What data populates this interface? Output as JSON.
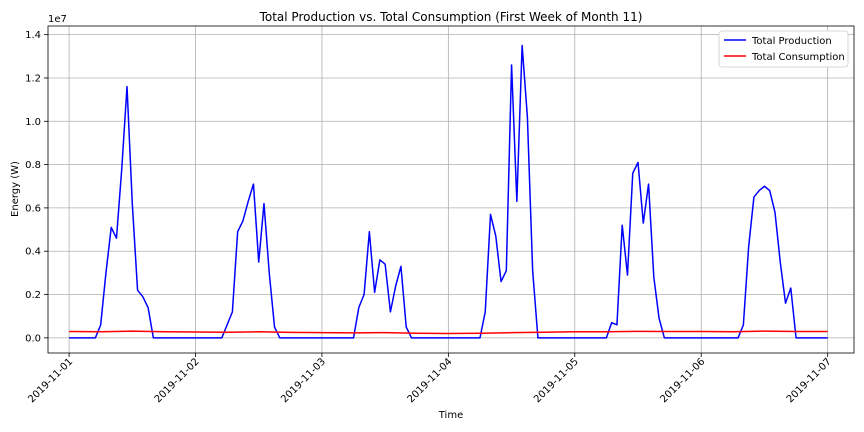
{
  "chart_data": {
    "type": "line",
    "title": "Total Production vs. Total Consumption (First Week of Month 11)",
    "xlabel": "Time",
    "ylabel": "Energy (W)",
    "y_scale_label": "1e7",
    "x_range": [
      "2019-11-00 20:00",
      "2019-11-07 05:00"
    ],
    "ylim": [
      -700000,
      14400000
    ],
    "x_ticks": [
      "2019-11-01",
      "2019-11-02",
      "2019-11-03",
      "2019-11-04",
      "2019-11-05",
      "2019-11-06",
      "2019-11-07"
    ],
    "y_ticks": [
      {
        "value": 0,
        "label": "0.0"
      },
      {
        "value": 2000000,
        "label": "0.2"
      },
      {
        "value": 4000000,
        "label": "0.4"
      },
      {
        "value": 6000000,
        "label": "0.6"
      },
      {
        "value": 8000000,
        "label": "0.8"
      },
      {
        "value": 10000000,
        "label": "1.0"
      },
      {
        "value": 12000000,
        "label": "1.2"
      },
      {
        "value": 14000000,
        "label": "1.4"
      }
    ],
    "grid": true,
    "legend_position": "top-right",
    "series": [
      {
        "name": "Total Production",
        "color": "#0000ff",
        "points": [
          [
            "2019-11-01 00:00",
            0
          ],
          [
            "2019-11-01 05:00",
            0
          ],
          [
            "2019-11-01 06:00",
            600000
          ],
          [
            "2019-11-01 07:00",
            3000000
          ],
          [
            "2019-11-01 08:00",
            5100000
          ],
          [
            "2019-11-01 09:00",
            4600000
          ],
          [
            "2019-11-01 10:00",
            7800000
          ],
          [
            "2019-11-01 11:00",
            11600000
          ],
          [
            "2019-11-01 12:00",
            6200000
          ],
          [
            "2019-11-01 13:00",
            2200000
          ],
          [
            "2019-11-01 14:00",
            1900000
          ],
          [
            "2019-11-01 15:00",
            1400000
          ],
          [
            "2019-11-01 16:00",
            0
          ],
          [
            "2019-11-02 05:00",
            0
          ],
          [
            "2019-11-02 07:00",
            1200000
          ],
          [
            "2019-11-02 08:00",
            4900000
          ],
          [
            "2019-11-02 09:00",
            5400000
          ],
          [
            "2019-11-02 10:00",
            6300000
          ],
          [
            "2019-11-02 11:00",
            7100000
          ],
          [
            "2019-11-02 12:00",
            3500000
          ],
          [
            "2019-11-02 13:00",
            6200000
          ],
          [
            "2019-11-02 14:00",
            3000000
          ],
          [
            "2019-11-02 15:00",
            500000
          ],
          [
            "2019-11-02 16:00",
            0
          ],
          [
            "2019-11-03 05:00",
            0
          ],
          [
            "2019-11-03 06:00",
            0
          ],
          [
            "2019-11-03 07:00",
            1400000
          ],
          [
            "2019-11-03 08:00",
            2000000
          ],
          [
            "2019-11-03 09:00",
            4900000
          ],
          [
            "2019-11-03 10:00",
            2100000
          ],
          [
            "2019-11-03 11:00",
            3600000
          ],
          [
            "2019-11-03 12:00",
            3400000
          ],
          [
            "2019-11-03 13:00",
            1200000
          ],
          [
            "2019-11-03 14:00",
            2400000
          ],
          [
            "2019-11-03 15:00",
            3300000
          ],
          [
            "2019-11-03 16:00",
            500000
          ],
          [
            "2019-11-03 17:00",
            0
          ],
          [
            "2019-11-04 06:00",
            0
          ],
          [
            "2019-11-04 07:00",
            1200000
          ],
          [
            "2019-11-04 08:00",
            5700000
          ],
          [
            "2019-11-04 09:00",
            4700000
          ],
          [
            "2019-11-04 10:00",
            2600000
          ],
          [
            "2019-11-04 11:00",
            3100000
          ],
          [
            "2019-11-04 12:00",
            12600000
          ],
          [
            "2019-11-04 13:00",
            6300000
          ],
          [
            "2019-11-04 14:00",
            13500000
          ],
          [
            "2019-11-04 15:00",
            10200000
          ],
          [
            "2019-11-04 16:00",
            3100000
          ],
          [
            "2019-11-04 17:00",
            0
          ],
          [
            "2019-11-05 06:00",
            0
          ],
          [
            "2019-11-05 07:00",
            700000
          ],
          [
            "2019-11-05 08:00",
            600000
          ],
          [
            "2019-11-05 09:00",
            5200000
          ],
          [
            "2019-11-05 10:00",
            2900000
          ],
          [
            "2019-11-05 11:00",
            7600000
          ],
          [
            "2019-11-05 12:00",
            8100000
          ],
          [
            "2019-11-05 13:00",
            5300000
          ],
          [
            "2019-11-05 14:00",
            7100000
          ],
          [
            "2019-11-05 15:00",
            2800000
          ],
          [
            "2019-11-05 16:00",
            900000
          ],
          [
            "2019-11-05 17:00",
            0
          ],
          [
            "2019-11-06 07:00",
            0
          ],
          [
            "2019-11-06 08:00",
            600000
          ],
          [
            "2019-11-06 09:00",
            4200000
          ],
          [
            "2019-11-06 10:00",
            6500000
          ],
          [
            "2019-11-06 11:00",
            6800000
          ],
          [
            "2019-11-06 12:00",
            7000000
          ],
          [
            "2019-11-06 13:00",
            6800000
          ],
          [
            "2019-11-06 14:00",
            5800000
          ],
          [
            "2019-11-06 15:00",
            3500000
          ],
          [
            "2019-11-06 16:00",
            1600000
          ],
          [
            "2019-11-06 17:00",
            2300000
          ],
          [
            "2019-11-06 18:00",
            0
          ],
          [
            "2019-11-07 00:00",
            0
          ]
        ]
      },
      {
        "name": "Total Consumption",
        "color": "#ff0000",
        "points": [
          [
            "2019-11-01 00:00",
            290000
          ],
          [
            "2019-11-01 06:00",
            280000
          ],
          [
            "2019-11-01 12:00",
            310000
          ],
          [
            "2019-11-01 18:00",
            280000
          ],
          [
            "2019-11-02 00:00",
            270000
          ],
          [
            "2019-11-02 06:00",
            260000
          ],
          [
            "2019-11-02 12:00",
            280000
          ],
          [
            "2019-11-02 18:00",
            250000
          ],
          [
            "2019-11-03 00:00",
            240000
          ],
          [
            "2019-11-03 06:00",
            230000
          ],
          [
            "2019-11-03 12:00",
            240000
          ],
          [
            "2019-11-03 18:00",
            210000
          ],
          [
            "2019-11-04 00:00",
            200000
          ],
          [
            "2019-11-04 06:00",
            210000
          ],
          [
            "2019-11-04 12:00",
            240000
          ],
          [
            "2019-11-04 18:00",
            260000
          ],
          [
            "2019-11-05 00:00",
            280000
          ],
          [
            "2019-11-05 06:00",
            280000
          ],
          [
            "2019-11-05 12:00",
            300000
          ],
          [
            "2019-11-05 18:00",
            290000
          ],
          [
            "2019-11-06 00:00",
            290000
          ],
          [
            "2019-11-06 06:00",
            280000
          ],
          [
            "2019-11-06 12:00",
            310000
          ],
          [
            "2019-11-06 18:00",
            290000
          ],
          [
            "2019-11-07 00:00",
            290000
          ]
        ]
      }
    ]
  }
}
